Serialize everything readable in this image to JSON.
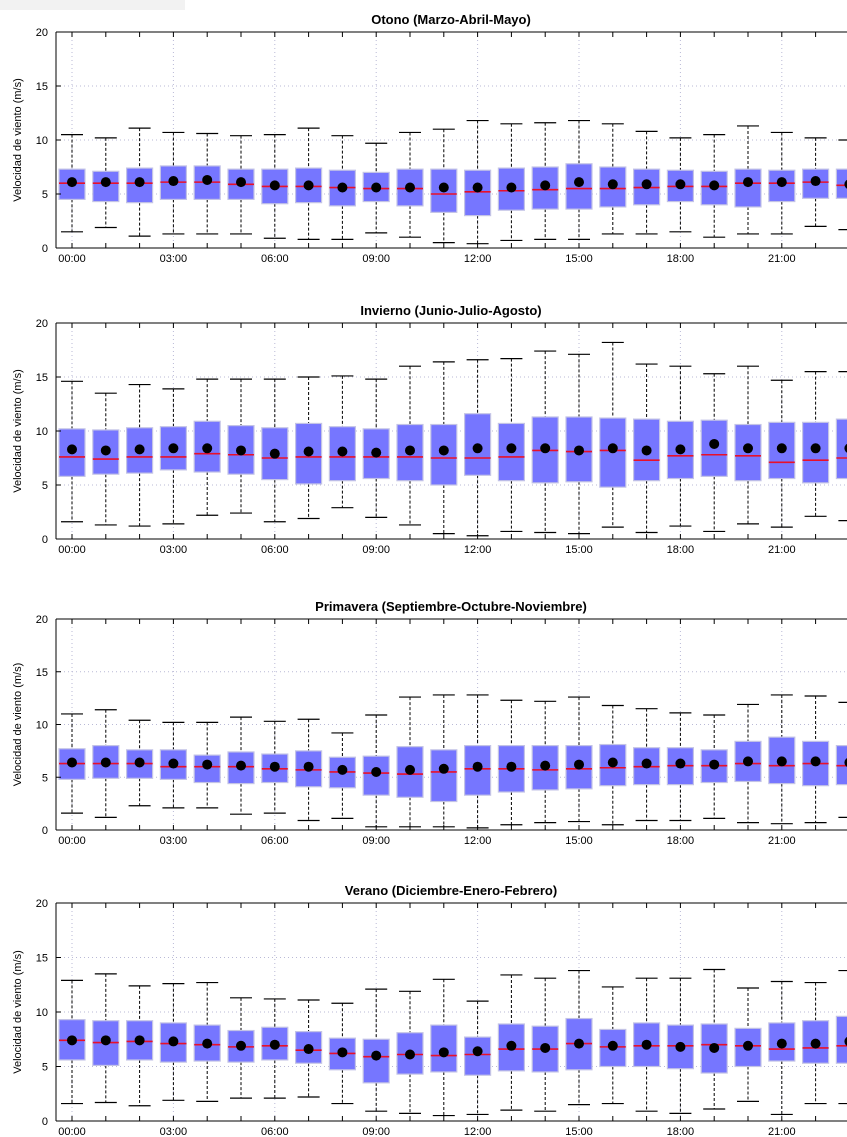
{
  "chart_data": [
    {
      "type": "box",
      "title": "Otono (Marzo-Abril-Mayo)",
      "ylabel": "Velocidad de viento (m/s)",
      "ylim": [
        0,
        20
      ],
      "yticks": [
        "0",
        "5",
        "10",
        "15",
        "20"
      ],
      "xtick_labels": [
        "00:00",
        "03:00",
        "06:00",
        "09:00",
        "12:00",
        "15:00",
        "18:00",
        "21:00"
      ],
      "grid": "dotted",
      "hours": [
        0,
        1,
        2,
        3,
        4,
        5,
        6,
        7,
        8,
        9,
        10,
        11,
        12,
        13,
        14,
        15,
        16,
        17,
        18,
        19,
        20,
        21,
        22,
        23
      ],
      "mean": [
        6.1,
        6.1,
        6.1,
        6.2,
        6.3,
        6.1,
        5.8,
        5.8,
        5.6,
        5.6,
        5.6,
        5.6,
        5.6,
        5.6,
        5.8,
        6.1,
        5.9,
        5.9,
        5.9,
        5.8,
        6.1,
        6.1,
        6.2,
        5.9
      ],
      "median": [
        6.0,
        6.0,
        6.0,
        6.1,
        6.1,
        5.9,
        5.7,
        5.7,
        5.6,
        5.5,
        5.5,
        5.0,
        5.2,
        5.3,
        5.4,
        5.5,
        5.5,
        5.6,
        5.7,
        5.7,
        6.0,
        6.0,
        6.1,
        5.8
      ],
      "q1": [
        4.5,
        4.3,
        4.2,
        4.5,
        4.5,
        4.5,
        4.1,
        4.2,
        3.9,
        4.3,
        3.9,
        3.3,
        3.0,
        3.5,
        3.6,
        3.6,
        3.8,
        4.0,
        4.3,
        4.0,
        3.8,
        4.3,
        4.6,
        4.6
      ],
      "q3": [
        7.3,
        7.1,
        7.4,
        7.6,
        7.6,
        7.3,
        7.3,
        7.4,
        7.2,
        7.0,
        7.3,
        7.3,
        7.2,
        7.4,
        7.5,
        7.8,
        7.5,
        7.3,
        7.2,
        7.1,
        7.3,
        7.2,
        7.3,
        7.3
      ],
      "whisker_low": [
        1.5,
        1.9,
        1.1,
        1.3,
        1.3,
        1.3,
        0.9,
        0.8,
        0.8,
        1.4,
        1.0,
        0.5,
        0.4,
        0.7,
        0.8,
        0.8,
        1.3,
        1.3,
        1.5,
        1.0,
        1.3,
        1.3,
        2.0,
        1.7
      ],
      "whisker_high": [
        10.5,
        10.2,
        11.1,
        10.7,
        10.6,
        10.4,
        10.5,
        11.1,
        10.4,
        9.7,
        10.7,
        11.0,
        11.8,
        11.5,
        11.6,
        11.8,
        11.5,
        10.8,
        10.2,
        10.5,
        11.3,
        10.7,
        10.2,
        10.0
      ]
    },
    {
      "type": "box",
      "title": "Invierno (Junio-Julio-Agosto)",
      "ylabel": "Velocidad de viento (m/s)",
      "ylim": [
        0,
        20
      ],
      "yticks": [
        "0",
        "5",
        "10",
        "15",
        "20"
      ],
      "xtick_labels": [
        "00:00",
        "03:00",
        "06:00",
        "09:00",
        "12:00",
        "15:00",
        "18:00",
        "21:00"
      ],
      "grid": "dotted",
      "hours": [
        0,
        1,
        2,
        3,
        4,
        5,
        6,
        7,
        8,
        9,
        10,
        11,
        12,
        13,
        14,
        15,
        16,
        17,
        18,
        19,
        20,
        21,
        22,
        23
      ],
      "mean": [
        8.3,
        8.2,
        8.3,
        8.4,
        8.4,
        8.2,
        7.9,
        8.1,
        8.1,
        8.0,
        8.2,
        8.2,
        8.4,
        8.4,
        8.4,
        8.2,
        8.4,
        8.2,
        8.3,
        8.8,
        8.4,
        8.4,
        8.4,
        8.4
      ],
      "median": [
        7.6,
        7.4,
        7.6,
        7.6,
        7.9,
        7.8,
        7.5,
        7.6,
        7.6,
        7.6,
        7.6,
        7.5,
        7.5,
        7.6,
        8.2,
        8.1,
        8.2,
        7.3,
        7.7,
        7.8,
        7.7,
        7.1,
        7.3,
        7.5
      ],
      "q1": [
        5.8,
        6.0,
        6.1,
        6.4,
        6.2,
        6.0,
        5.5,
        5.1,
        5.4,
        5.6,
        5.4,
        5.0,
        5.9,
        5.4,
        5.2,
        5.3,
        4.8,
        5.4,
        5.6,
        5.8,
        5.4,
        5.6,
        5.2,
        5.6
      ],
      "q3": [
        10.2,
        10.1,
        10.3,
        10.4,
        10.9,
        10.5,
        10.3,
        10.7,
        10.4,
        10.2,
        10.6,
        10.6,
        11.6,
        10.7,
        11.3,
        11.3,
        11.2,
        11.1,
        10.9,
        11.0,
        10.6,
        10.8,
        10.8,
        11.1
      ],
      "whisker_low": [
        1.6,
        1.3,
        1.2,
        1.4,
        2.2,
        2.4,
        1.6,
        1.9,
        2.9,
        2.0,
        1.3,
        0.5,
        0.3,
        0.7,
        0.6,
        0.5,
        1.1,
        0.6,
        1.2,
        0.7,
        1.4,
        1.1,
        2.1,
        1.7
      ],
      "whisker_high": [
        14.6,
        13.5,
        14.3,
        13.9,
        14.8,
        14.8,
        14.8,
        15.0,
        15.1,
        14.8,
        16.0,
        16.4,
        16.6,
        16.7,
        17.4,
        17.1,
        18.2,
        16.2,
        16.0,
        15.3,
        16.0,
        14.7,
        15.5,
        15.5
      ]
    },
    {
      "type": "box",
      "title": "Primavera (Septiembre-Octubre-Noviembre)",
      "ylabel": "Velocidad de viento (m/s)",
      "ylim": [
        0,
        20
      ],
      "yticks": [
        "0",
        "5",
        "10",
        "15",
        "20"
      ],
      "xtick_labels": [
        "00:00",
        "03:00",
        "06:00",
        "09:00",
        "12:00",
        "15:00",
        "18:00",
        "21:00"
      ],
      "grid": "dotted",
      "hours": [
        0,
        1,
        2,
        3,
        4,
        5,
        6,
        7,
        8,
        9,
        10,
        11,
        12,
        13,
        14,
        15,
        16,
        17,
        18,
        19,
        20,
        21,
        22,
        23
      ],
      "mean": [
        6.4,
        6.4,
        6.4,
        6.3,
        6.2,
        6.1,
        6.0,
        6.0,
        5.7,
        5.5,
        5.7,
        5.8,
        6.0,
        6.0,
        6.1,
        6.2,
        6.4,
        6.3,
        6.3,
        6.2,
        6.5,
        6.5,
        6.5,
        6.4
      ],
      "median": [
        6.3,
        6.3,
        6.3,
        6.0,
        6.0,
        6.0,
        5.8,
        5.7,
        5.5,
        5.4,
        5.3,
        5.5,
        5.8,
        5.8,
        5.7,
        5.8,
        5.9,
        6.0,
        6.1,
        6.1,
        6.3,
        6.1,
        6.3,
        6.1
      ],
      "q1": [
        4.8,
        4.9,
        4.9,
        4.8,
        4.5,
        4.4,
        4.5,
        4.1,
        4.0,
        3.3,
        3.1,
        2.7,
        3.3,
        3.6,
        3.8,
        3.9,
        4.2,
        4.3,
        4.3,
        4.5,
        4.6,
        4.4,
        4.2,
        4.3
      ],
      "q3": [
        7.7,
        8.0,
        7.6,
        7.6,
        7.1,
        7.4,
        7.2,
        7.5,
        6.9,
        7.0,
        7.9,
        7.6,
        8.0,
        8.0,
        8.0,
        8.0,
        8.1,
        7.8,
        7.8,
        7.6,
        8.4,
        8.8,
        8.4,
        8.0
      ],
      "whisker_low": [
        1.6,
        1.2,
        2.3,
        2.1,
        2.1,
        1.5,
        1.6,
        0.9,
        1.1,
        0.3,
        0.3,
        0.3,
        0.2,
        0.5,
        0.7,
        0.8,
        0.5,
        0.9,
        0.9,
        1.1,
        0.7,
        0.6,
        0.7,
        1.2
      ],
      "whisker_high": [
        11.0,
        11.4,
        10.4,
        10.2,
        10.2,
        10.7,
        10.3,
        10.5,
        9.2,
        10.9,
        12.6,
        12.8,
        12.8,
        12.3,
        12.2,
        12.6,
        11.8,
        11.5,
        11.1,
        10.9,
        11.9,
        12.8,
        12.7,
        12.1
      ]
    },
    {
      "type": "box",
      "title": "Verano (Diciembre-Enero-Febrero)",
      "ylabel": "Velocidad de viento (m/s)",
      "ylim": [
        0,
        20
      ],
      "yticks": [
        "0",
        "5",
        "10",
        "15",
        "20"
      ],
      "xtick_labels": [
        "00:00",
        "03:00",
        "06:00",
        "09:00",
        "12:00",
        "15:00",
        "18:00",
        "21:00"
      ],
      "grid": "dotted",
      "hours": [
        0,
        1,
        2,
        3,
        4,
        5,
        6,
        7,
        8,
        9,
        10,
        11,
        12,
        13,
        14,
        15,
        16,
        17,
        18,
        19,
        20,
        21,
        22,
        23
      ],
      "mean": [
        7.4,
        7.4,
        7.4,
        7.3,
        7.1,
        6.9,
        7.0,
        6.6,
        6.3,
        6.0,
        6.1,
        6.3,
        6.4,
        6.9,
        6.7,
        7.1,
        6.9,
        7.0,
        6.8,
        6.7,
        6.9,
        7.1,
        7.1,
        7.3
      ],
      "median": [
        7.4,
        7.2,
        7.3,
        7.1,
        7.0,
        6.8,
        6.9,
        6.5,
        6.2,
        5.9,
        6.1,
        6.0,
        6.1,
        6.6,
        6.6,
        7.1,
        6.8,
        6.9,
        6.9,
        7.0,
        6.9,
        6.6,
        6.7,
        6.9
      ],
      "q1": [
        5.6,
        5.1,
        5.6,
        5.4,
        5.5,
        5.4,
        5.6,
        5.3,
        4.7,
        3.5,
        4.3,
        4.5,
        4.2,
        4.6,
        4.5,
        4.7,
        5.0,
        5.0,
        4.8,
        4.4,
        5.0,
        5.5,
        5.3,
        5.3
      ],
      "q3": [
        9.3,
        9.2,
        9.2,
        9.0,
        8.8,
        8.3,
        8.6,
        8.2,
        7.6,
        7.5,
        8.1,
        8.8,
        7.7,
        8.9,
        8.7,
        9.4,
        8.4,
        9.0,
        8.8,
        8.9,
        8.5,
        9.0,
        9.2,
        9.6
      ],
      "whisker_low": [
        1.6,
        1.7,
        1.4,
        1.9,
        1.8,
        2.1,
        2.1,
        2.2,
        1.6,
        0.9,
        0.7,
        0.5,
        0.6,
        1.0,
        0.9,
        1.5,
        1.6,
        0.9,
        0.7,
        1.1,
        1.8,
        0.6,
        1.6,
        1.6
      ],
      "whisker_high": [
        12.9,
        13.5,
        12.4,
        12.6,
        12.7,
        11.3,
        11.2,
        11.1,
        10.8,
        12.1,
        11.9,
        13.0,
        11.0,
        13.4,
        13.1,
        13.8,
        12.3,
        13.1,
        13.1,
        13.9,
        12.2,
        12.8,
        12.7,
        13.8
      ]
    }
  ],
  "colors": {
    "box_fill": "#7676ff",
    "box_edge": "#c3c3e6",
    "median": "#e8102a",
    "mean_marker": "#000000",
    "grid": "#b9b9d6"
  }
}
